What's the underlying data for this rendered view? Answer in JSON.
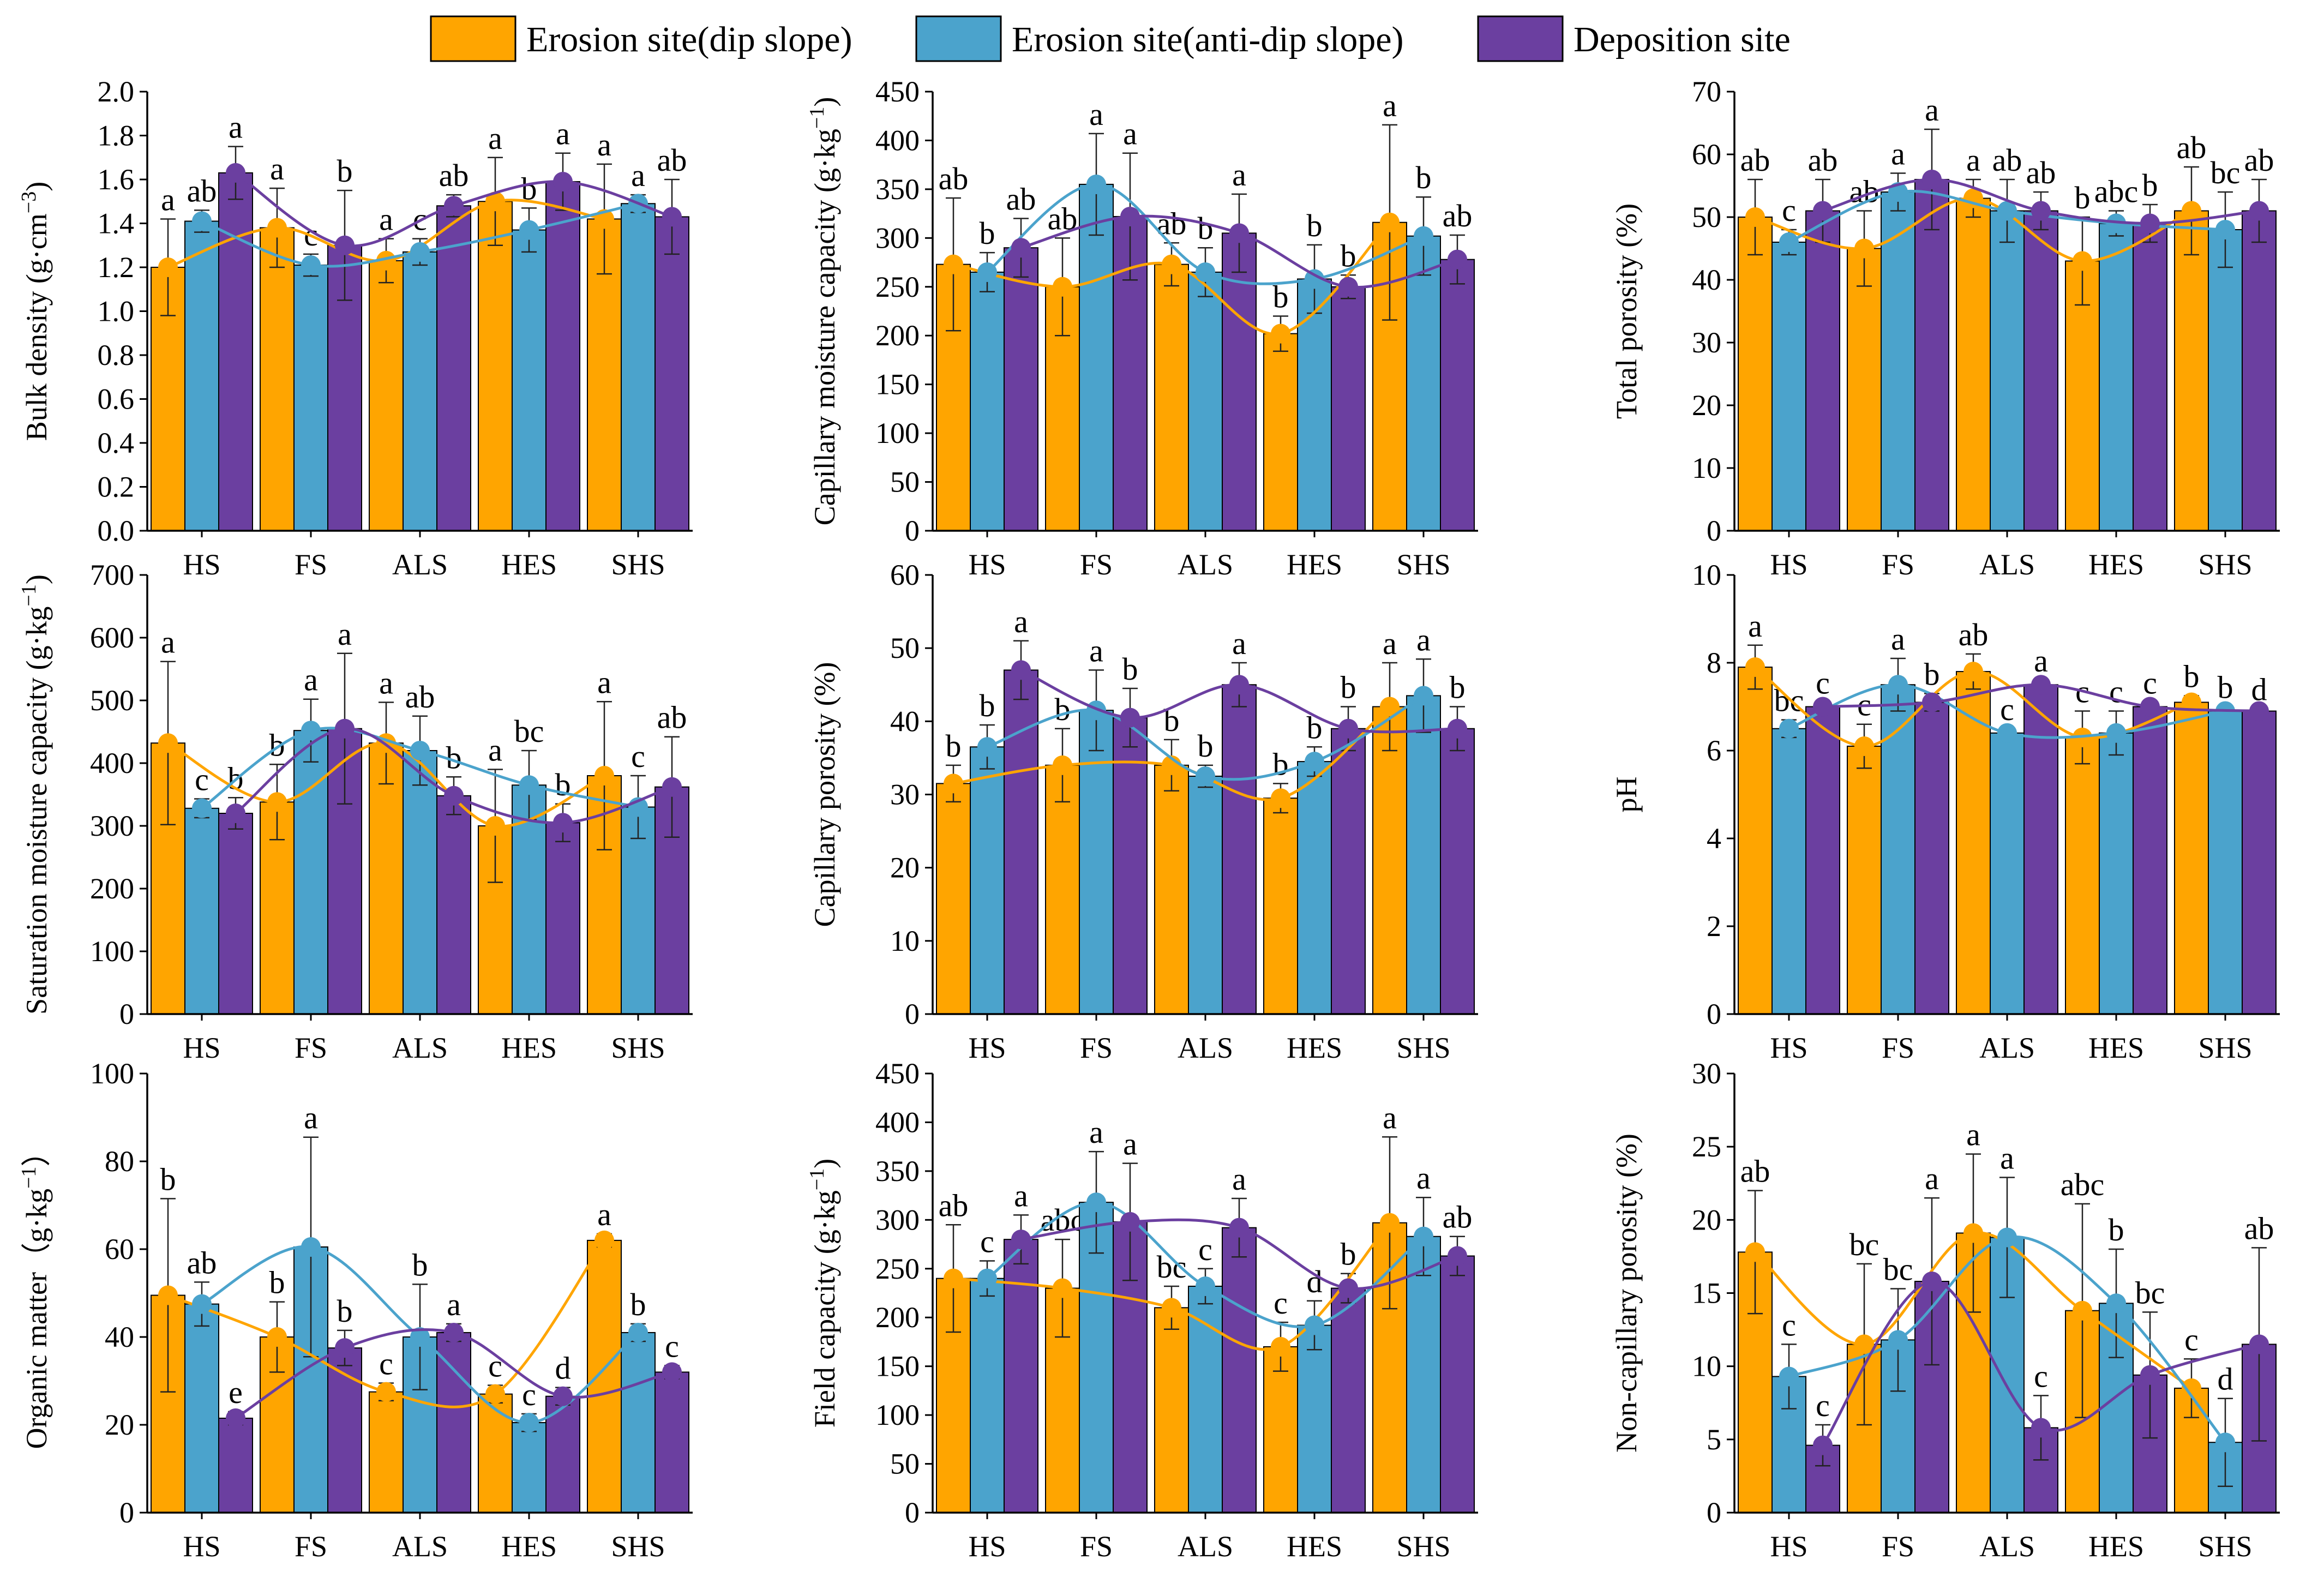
{
  "legend": [
    {
      "name": "Erosion site(dip slope)",
      "color": "#FFA500"
    },
    {
      "name": "Erosion site(anti-dip slope)",
      "color": "#4BA3CC"
    },
    {
      "name": "Deposition site",
      "color": "#6B3FA0"
    }
  ],
  "chart_data": [
    {
      "type": "bar",
      "ylabel_main": "Bulk density (g·cm",
      "ylabel_sup": "−3",
      "ylabel_end": ")",
      "ylim": [
        0,
        2.0
      ],
      "yticks": [
        "0.0",
        "0.2",
        "0.4",
        "0.6",
        "0.8",
        "1.0",
        "1.2",
        "1.4",
        "1.6",
        "1.8",
        "2.0"
      ],
      "categories": [
        "HS",
        "FS",
        "ALS",
        "HES",
        "SHS"
      ],
      "series": [
        {
          "name": "Erosion site(dip slope)",
          "values": [
            1.2,
            1.38,
            1.23,
            1.5,
            1.42
          ],
          "errors": [
            0.22,
            0.18,
            0.1,
            0.2,
            0.25
          ],
          "letters": [
            "a",
            "a",
            "a",
            "a",
            "a"
          ]
        },
        {
          "name": "Erosion site(anti-dip slope)",
          "values": [
            1.41,
            1.21,
            1.27,
            1.37,
            1.49
          ],
          "errors": [
            0.05,
            0.05,
            0.06,
            0.1,
            0.04
          ],
          "letters": [
            "ab",
            "c",
            "c",
            "b",
            "a"
          ]
        },
        {
          "name": "Deposition site",
          "values": [
            1.63,
            1.3,
            1.48,
            1.59,
            1.43
          ],
          "errors": [
            0.12,
            0.25,
            0.05,
            0.13,
            0.17
          ],
          "letters": [
            "a",
            "b",
            "ab",
            "a",
            "ab"
          ]
        }
      ]
    },
    {
      "type": "bar",
      "ylabel_main": "Capillary moisture capacity (g·kg",
      "ylabel_sup": "−1",
      "ylabel_end": ")",
      "ylim": [
        0,
        450
      ],
      "yticks": [
        "0",
        "50",
        "100",
        "150",
        "200",
        "250",
        "300",
        "350",
        "400",
        "450"
      ],
      "categories": [
        "HS",
        "FS",
        "ALS",
        "HES",
        "SHS"
      ],
      "series": [
        {
          "name": "Erosion site(dip slope)",
          "values": [
            273,
            250,
            273,
            202,
            316
          ],
          "errors": [
            68,
            50,
            22,
            18,
            100
          ],
          "letters": [
            "ab",
            "ab",
            "ab",
            "b",
            "a"
          ]
        },
        {
          "name": "Erosion site(anti-dip slope)",
          "values": [
            265,
            355,
            265,
            258,
            302
          ],
          "errors": [
            20,
            52,
            25,
            35,
            40
          ],
          "letters": [
            "b",
            "a",
            "b",
            "b",
            "b"
          ]
        },
        {
          "name": "Deposition site",
          "values": [
            290,
            322,
            305,
            250,
            278
          ],
          "errors": [
            30,
            65,
            40,
            12,
            25
          ],
          "letters": [
            "ab",
            "a",
            "a",
            "b",
            "ab"
          ]
        }
      ]
    },
    {
      "type": "bar",
      "ylabel_main": "Total porosity (%)",
      "ylabel_sup": "",
      "ylabel_end": "",
      "ylim": [
        0,
        70
      ],
      "yticks": [
        "0",
        "10",
        "20",
        "30",
        "40",
        "50",
        "60",
        "70"
      ],
      "categories": [
        "HS",
        "FS",
        "ALS",
        "HES",
        "SHS"
      ],
      "series": [
        {
          "name": "Erosion site(dip slope)",
          "values": [
            50,
            45,
            53,
            43,
            51
          ],
          "errors": [
            6,
            6,
            3,
            7,
            7
          ],
          "letters": [
            "ab",
            "ab",
            "a",
            "b",
            "ab"
          ]
        },
        {
          "name": "Erosion site(anti-dip slope)",
          "values": [
            46,
            54,
            51,
            49,
            48
          ],
          "errors": [
            2,
            3,
            5,
            2,
            6
          ],
          "letters": [
            "c",
            "a",
            "ab",
            "abc",
            "bc"
          ]
        },
        {
          "name": "Deposition site",
          "values": [
            51,
            56,
            51,
            49,
            51
          ],
          "errors": [
            5,
            8,
            3,
            3,
            5
          ],
          "letters": [
            "ab",
            "a",
            "ab",
            "b",
            "ab"
          ]
        }
      ]
    },
    {
      "type": "bar",
      "ylabel_main": "Saturation moisture capacity (g·kg",
      "ylabel_sup": "−1",
      "ylabel_end": ")",
      "ylim": [
        0,
        700
      ],
      "yticks": [
        "0",
        "100",
        "200",
        "300",
        "400",
        "500",
        "600",
        "700"
      ],
      "categories": [
        "HS",
        "FS",
        "ALS",
        "HES",
        "SHS"
      ],
      "series": [
        {
          "name": "Erosion site(dip slope)",
          "values": [
            432,
            338,
            432,
            300,
            380
          ],
          "errors": [
            130,
            60,
            65,
            90,
            118
          ],
          "letters": [
            "a",
            "b",
            "a",
            "a",
            "a"
          ]
        },
        {
          "name": "Erosion site(anti-dip slope)",
          "values": [
            328,
            452,
            420,
            365,
            330
          ],
          "errors": [
            15,
            50,
            55,
            55,
            50
          ],
          "letters": [
            "c",
            "a",
            "ab",
            "bc",
            "c"
          ]
        },
        {
          "name": "Deposition site",
          "values": [
            320,
            455,
            348,
            305,
            362
          ],
          "errors": [
            25,
            120,
            30,
            30,
            80
          ],
          "letters": [
            "b",
            "a",
            "b",
            "b",
            "ab"
          ]
        }
      ]
    },
    {
      "type": "bar",
      "ylabel_main": "Capillary porosity (%)",
      "ylabel_sup": "",
      "ylabel_end": "",
      "ylim": [
        0,
        60
      ],
      "yticks": [
        "0",
        "10",
        "20",
        "30",
        "40",
        "50",
        "60"
      ],
      "categories": [
        "HS",
        "FS",
        "ALS",
        "HES",
        "SHS"
      ],
      "series": [
        {
          "name": "Erosion site(dip slope)",
          "values": [
            31.5,
            34,
            34,
            29.5,
            42
          ],
          "errors": [
            2.5,
            5,
            3.5,
            2,
            6
          ],
          "letters": [
            "b",
            "b",
            "b",
            "b",
            "a"
          ]
        },
        {
          "name": "Erosion site(anti-dip slope)",
          "values": [
            36.5,
            41.5,
            32.5,
            34.5,
            43.5
          ],
          "errors": [
            3,
            5.5,
            1.5,
            2,
            5
          ],
          "letters": [
            "b",
            "a",
            "b",
            "b",
            "a"
          ]
        },
        {
          "name": "Deposition site",
          "values": [
            47,
            40.5,
            45,
            39,
            39
          ],
          "errors": [
            4,
            4,
            3,
            3,
            3
          ],
          "letters": [
            "a",
            "b",
            "a",
            "b",
            "b"
          ]
        }
      ]
    },
    {
      "type": "bar",
      "ylabel_main": "pH",
      "ylabel_sup": "",
      "ylabel_end": "",
      "ylim": [
        0,
        10
      ],
      "yticks": [
        "0",
        "2",
        "4",
        "6",
        "8",
        "10"
      ],
      "categories": [
        "HS",
        "FS",
        "ALS",
        "HES",
        "SHS"
      ],
      "series": [
        {
          "name": "Erosion site(dip slope)",
          "values": [
            7.9,
            6.1,
            7.8,
            6.3,
            7.1
          ],
          "errors": [
            0.5,
            0.5,
            0.4,
            0.6,
            0.15
          ],
          "letters": [
            "a",
            "c",
            "ab",
            "c",
            "b"
          ]
        },
        {
          "name": "Erosion site(anti-dip slope)",
          "values": [
            6.5,
            7.5,
            6.4,
            6.4,
            6.9
          ],
          "errors": [
            0.2,
            0.6,
            0.1,
            0.5,
            0.1
          ],
          "letters": [
            "bc",
            "a",
            "c",
            "c",
            "b"
          ]
        },
        {
          "name": "Deposition site",
          "values": [
            7.0,
            7.1,
            7.5,
            7.0,
            6.9
          ],
          "errors": [
            0.1,
            0.2,
            0.1,
            0.1,
            0.05
          ],
          "letters": [
            "c",
            "b",
            "a",
            "c",
            "d"
          ]
        }
      ]
    },
    {
      "type": "bar",
      "ylabel_main": "Organic matter（g·kg",
      "ylabel_sup": "−1",
      "ylabel_end": "）",
      "ylim": [
        0,
        100
      ],
      "yticks": [
        "0",
        "20",
        "40",
        "60",
        "80",
        "100"
      ],
      "categories": [
        "HS",
        "FS",
        "ALS",
        "HES",
        "SHS"
      ],
      "series": [
        {
          "name": "Erosion site(dip slope)",
          "values": [
            49.5,
            40,
            27.5,
            27,
            62
          ],
          "errors": [
            22,
            8,
            2,
            2,
            1.5
          ],
          "letters": [
            "b",
            "b",
            "c",
            "c",
            "a"
          ]
        },
        {
          "name": "Erosion site(anti-dip slope)",
          "values": [
            47.5,
            60.5,
            40,
            20.5,
            41
          ],
          "errors": [
            5,
            25,
            12,
            2,
            2
          ],
          "letters": [
            "ab",
            "a",
            "b",
            "c",
            "b"
          ]
        },
        {
          "name": "Deposition site",
          "values": [
            21.5,
            37.5,
            41,
            26.5,
            32
          ],
          "errors": [
            1.5,
            4,
            2,
            2,
            1.5
          ],
          "letters": [
            "e",
            "b",
            "a",
            "d",
            "c"
          ]
        }
      ]
    },
    {
      "type": "bar",
      "ylabel_main": "Field capacity (g·kg",
      "ylabel_sup": "−1",
      "ylabel_end": ")",
      "ylim": [
        0,
        450
      ],
      "yticks": [
        "0",
        "50",
        "100",
        "150",
        "200",
        "250",
        "300",
        "350",
        "400",
        "450"
      ],
      "categories": [
        "HS",
        "FS",
        "ALS",
        "HES",
        "SHS"
      ],
      "series": [
        {
          "name": "Erosion site(dip slope)",
          "values": [
            240,
            230,
            210,
            170,
            297
          ],
          "errors": [
            55,
            50,
            22,
            25,
            88
          ],
          "letters": [
            "ab",
            "abc",
            "bc",
            "c",
            "a"
          ]
        },
        {
          "name": "Erosion site(anti-dip slope)",
          "values": [
            240,
            318,
            232,
            192,
            283
          ],
          "errors": [
            18,
            52,
            18,
            25,
            40
          ],
          "letters": [
            "c",
            "a",
            "c",
            "d",
            "a"
          ]
        },
        {
          "name": "Deposition site",
          "values": [
            280,
            298,
            292,
            230,
            263
          ],
          "errors": [
            25,
            60,
            30,
            15,
            20
          ],
          "letters": [
            "a",
            "a",
            "a",
            "b",
            "ab"
          ]
        }
      ]
    },
    {
      "type": "bar",
      "ylabel_main": "Non-capillary porosity (%)",
      "ylabel_sup": "",
      "ylabel_end": "",
      "ylim": [
        0,
        30
      ],
      "yticks": [
        "0",
        "5",
        "10",
        "15",
        "20",
        "25",
        "30"
      ],
      "categories": [
        "HS",
        "FS",
        "ALS",
        "HES",
        "SHS"
      ],
      "series": [
        {
          "name": "Erosion site(dip slope)",
          "values": [
            17.8,
            11.5,
            19.1,
            13.8,
            8.5
          ],
          "errors": [
            4.2,
            5.5,
            5.4,
            7.3,
            2
          ],
          "letters": [
            "ab",
            "bc",
            "a",
            "abc",
            "c"
          ]
        },
        {
          "name": "Erosion site(anti-dip slope)",
          "values": [
            9.3,
            11.8,
            18.8,
            14.3,
            4.8
          ],
          "errors": [
            2.2,
            3.5,
            4.1,
            3.7,
            3
          ],
          "letters": [
            "c",
            "bc",
            "a",
            "b",
            "d"
          ]
        },
        {
          "name": "Deposition site",
          "values": [
            4.6,
            15.8,
            5.8,
            9.4,
            11.5
          ],
          "errors": [
            1.4,
            5.7,
            2.2,
            4.3,
            6.6
          ],
          "letters": [
            "c",
            "a",
            "c",
            "bc",
            "ab"
          ]
        }
      ]
    }
  ]
}
